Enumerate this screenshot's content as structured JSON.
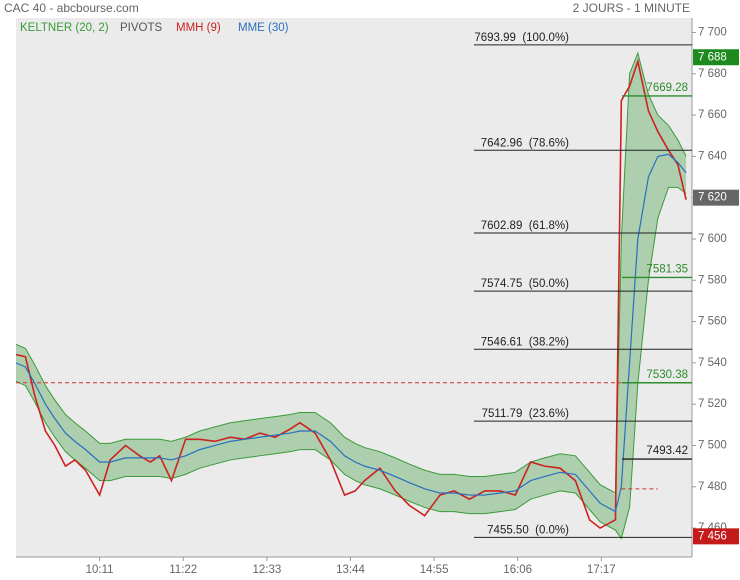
{
  "chart_data": {
    "type": "line",
    "title": "CAC 40 - abcbourse.com",
    "subtitle": "2 JOURS - 1 MINUTE",
    "x": [
      540,
      548,
      556,
      565,
      573,
      582,
      590,
      599,
      611,
      620,
      633,
      645,
      654,
      662,
      672,
      684,
      696,
      709,
      722,
      734,
      747,
      760,
      773,
      781,
      794,
      807,
      819,
      828,
      836,
      849,
      862,
      874,
      887,
      900,
      912,
      925,
      938,
      951,
      964,
      977,
      989,
      1002,
      1015,
      1027,
      1036,
      1049,
      1054,
      1061,
      1068,
      1077,
      1085,
      1094,
      1102,
      1109
    ],
    "xlim": [
      540,
      1114
    ],
    "xticks": [
      {
        "value": 611,
        "label": "10:11"
      },
      {
        "value": 682,
        "label": "11:22"
      },
      {
        "value": 753,
        "label": "12:33"
      },
      {
        "value": 824,
        "label": "13:44"
      },
      {
        "value": 895,
        "label": "14:55"
      },
      {
        "value": 966,
        "label": "16:06"
      },
      {
        "value": 1037,
        "label": "17:17"
      }
    ],
    "ylim": [
      7446,
      7707
    ],
    "yticks": [
      {
        "value": 7460,
        "label": "7 460"
      },
      {
        "value": 7480,
        "label": "7 480"
      },
      {
        "value": 7500,
        "label": "7 500"
      },
      {
        "value": 7520,
        "label": "7 520"
      },
      {
        "value": 7540,
        "label": "7 540"
      },
      {
        "value": 7560,
        "label": "7 560"
      },
      {
        "value": 7580,
        "label": "7 580"
      },
      {
        "value": 7600,
        "label": "7 600"
      },
      {
        "value": 7620,
        "label": "7 620"
      },
      {
        "value": 7640,
        "label": "7 640"
      },
      {
        "value": 7660,
        "label": "7 660"
      },
      {
        "value": 7680,
        "label": "7 680"
      },
      {
        "value": 7700,
        "label": "7 700"
      }
    ],
    "keltner": {
      "name": "KELTNER (20, 2)",
      "color": "#3a9a3a",
      "upper": [
        7549,
        7547,
        7539,
        7529,
        7522,
        7515,
        7511,
        7507,
        7501,
        7501,
        7503,
        7503,
        7503,
        7503,
        7502,
        7504,
        7507,
        7509,
        7511,
        7512,
        7513,
        7514,
        7515,
        7516,
        7516,
        7511,
        7504,
        7501,
        7499,
        7497,
        7494,
        7491,
        7488,
        7486,
        7486,
        7485,
        7485,
        7486,
        7487,
        7492,
        7494,
        7496,
        7495,
        7487,
        7481,
        7477,
        7600,
        7680,
        7690,
        7670,
        7660,
        7655,
        7648,
        7640
      ],
      "lower": [
        7531,
        7529,
        7521,
        7511,
        7504,
        7497,
        7493,
        7489,
        7483,
        7483,
        7485,
        7485,
        7485,
        7485,
        7484,
        7486,
        7489,
        7491,
        7493,
        7494,
        7495,
        7496,
        7497,
        7498,
        7498,
        7493,
        7486,
        7483,
        7481,
        7479,
        7476,
        7473,
        7470,
        7468,
        7468,
        7467,
        7467,
        7468,
        7469,
        7474,
        7476,
        7478,
        7477,
        7469,
        7463,
        7459,
        7455,
        7470,
        7530,
        7580,
        7610,
        7625,
        7625,
        7622
      ]
    },
    "pivots": {
      "name": "PIVOTS",
      "color": "#555555",
      "levels": [
        {
          "value": 7669.28,
          "color": "#2e8b2e"
        },
        {
          "value": 7581.35,
          "color": "#2e8b2e"
        },
        {
          "value": 7530.38,
          "color": "#2e8b2e"
        },
        {
          "value": 7493.42,
          "color": "#222222"
        }
      ]
    },
    "series": [
      {
        "name": "MMH (9)",
        "color": "#cc2222",
        "values": [
          7544,
          7543,
          7524,
          7507,
          7500,
          7490,
          7493,
          7488,
          7476,
          7493,
          7500,
          7495,
          7492,
          7495,
          7483,
          7503,
          7503,
          7502,
          7504,
          7503,
          7506,
          7504,
          7508,
          7511,
          7506,
          7493,
          7476,
          7478,
          7483,
          7489,
          7478,
          7471,
          7466,
          7476,
          7478,
          7474,
          7478,
          7478,
          7476,
          7492,
          7490,
          7489,
          7483,
          7464,
          7460,
          7464,
          7667,
          7674,
          7686,
          7662,
          7652,
          7643,
          7636,
          7619
        ]
      },
      {
        "name": "MME (30)",
        "color": "#2a6fc0",
        "values": [
          7540,
          7538,
          7530,
          7520,
          7513,
          7506,
          7502,
          7498,
          7492,
          7492,
          7494,
          7494,
          7494,
          7494,
          7493,
          7495,
          7498,
          7500,
          7502,
          7503,
          7504,
          7505,
          7506,
          7507,
          7507,
          7502,
          7495,
          7492,
          7490,
          7488,
          7485,
          7482,
          7479,
          7477,
          7477,
          7476,
          7476,
          7477,
          7478,
          7483,
          7485,
          7487,
          7486,
          7478,
          7472,
          7468,
          7480,
          7540,
          7600,
          7630,
          7640,
          7641,
          7637,
          7632
        ]
      }
    ],
    "fibonacci": [
      {
        "value": 7693.99,
        "label": "7693.99  (100.0%)"
      },
      {
        "value": 7642.96,
        "label": "7642.96  (78.6%)"
      },
      {
        "value": 7602.89,
        "label": "7602.89  (61.8%)"
      },
      {
        "value": 7574.75,
        "label": "7574.75  (50.0%)"
      },
      {
        "value": 7546.61,
        "label": "7546.61  (38.2%)"
      },
      {
        "value": 7511.79,
        "label": "7511.79  (23.6%)"
      },
      {
        "value": 7455.5,
        "label": "7455.50  (0.0%)"
      }
    ],
    "dashed_levels": [
      {
        "value": 7530.38,
        "color": "#d03030",
        "x": [
          540,
          1054
        ]
      },
      {
        "value": 7479,
        "color": "#d03030",
        "x": [
          1054,
          1085
        ]
      }
    ],
    "price_tags": [
      {
        "value": 7688,
        "label": "7 688",
        "color": "#1e8a1e"
      },
      {
        "value": 7620,
        "label": "7 620",
        "color": "#666666"
      },
      {
        "value": 7456,
        "label": "7 456",
        "color": "#c41a1a"
      }
    ]
  }
}
